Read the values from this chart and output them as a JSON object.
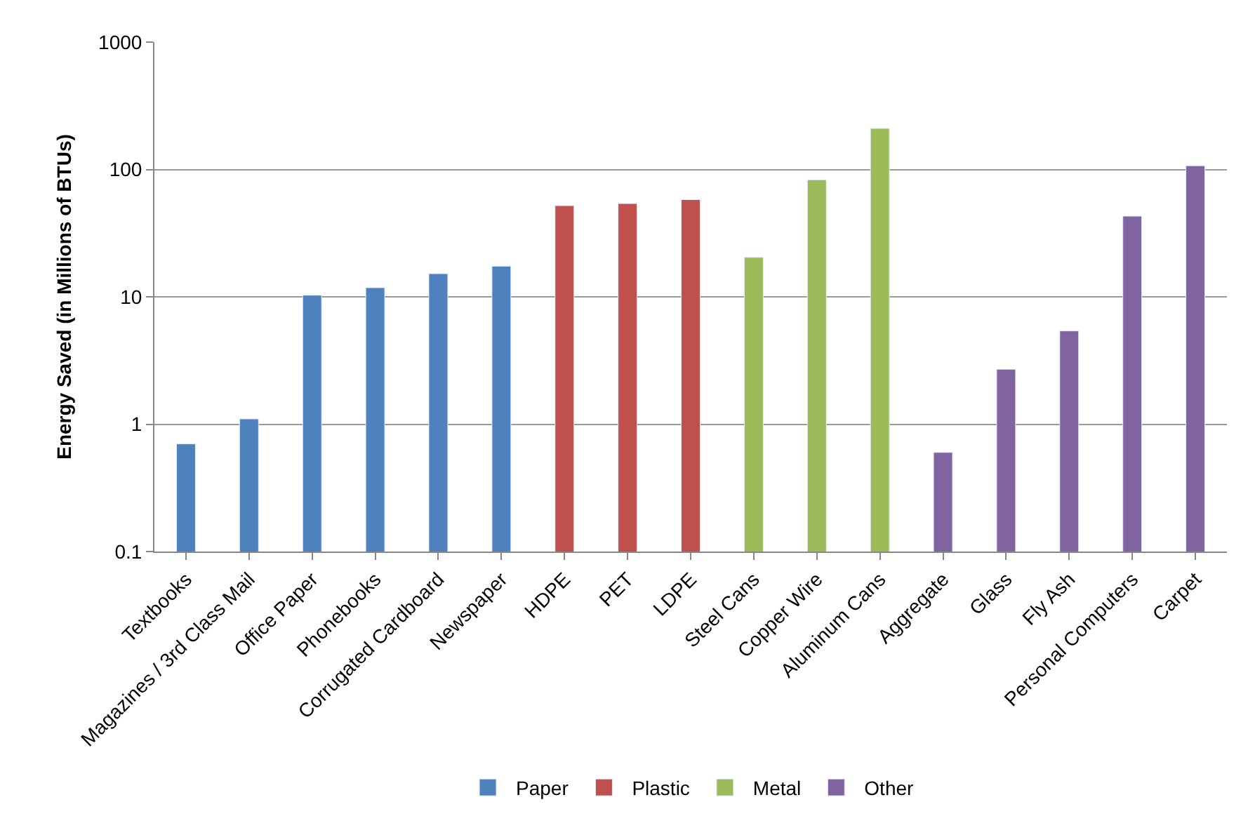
{
  "chart_data": {
    "type": "bar",
    "ylabel": "Energy Saved (in Millions of BTUs)",
    "categories": [
      "Textbooks",
      "Magazines / 3rd Class Mail",
      "Office Paper",
      "Phonebooks",
      "Corrugated Cardboard",
      "Newspaper",
      "HDPE",
      "PET",
      "LDPE",
      "Steel Cans",
      "Copper Wire",
      "Aluminum Cans",
      "Aggregate",
      "Glass",
      "Fly Ash",
      "Personal Computers",
      "Carpet"
    ],
    "series": [
      {
        "name": "Paper",
        "color": "#4f81bd",
        "values": [
          0.7,
          1.1,
          10.3,
          11.8,
          15.2,
          17.4,
          null,
          null,
          null,
          null,
          null,
          null,
          null,
          null,
          null,
          null,
          null
        ]
      },
      {
        "name": "Plastic",
        "color": "#c0504d",
        "values": [
          null,
          null,
          null,
          null,
          null,
          null,
          52,
          54,
          58,
          null,
          null,
          null,
          null,
          null,
          null,
          null,
          null
        ]
      },
      {
        "name": "Metal",
        "color": "#9bbb59",
        "values": [
          null,
          null,
          null,
          null,
          null,
          null,
          null,
          null,
          null,
          20.4,
          83,
          210,
          null,
          null,
          null,
          null,
          null
        ]
      },
      {
        "name": "Other",
        "color": "#8064a2",
        "values": [
          null,
          null,
          null,
          null,
          null,
          null,
          null,
          null,
          null,
          null,
          null,
          null,
          0.6,
          2.7,
          5.4,
          43,
          107
        ]
      }
    ],
    "log": "y",
    "ylim": [
      0.1,
      1000
    ],
    "yticks": [
      0.1,
      1,
      10,
      100,
      1000
    ],
    "grid": "y",
    "legend": "bottom"
  }
}
